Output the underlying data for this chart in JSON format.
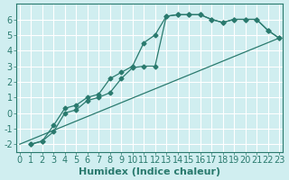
{
  "xlabel": "Humidex (Indice chaleur)",
  "ylabel": "",
  "bg_color": "#d0eef0",
  "line_color": "#2a7a6e",
  "grid_color": "#ffffff",
  "xlim": [
    0,
    23
  ],
  "ylim": [
    -2.5,
    7
  ],
  "xticks": [
    0,
    1,
    2,
    3,
    4,
    5,
    6,
    7,
    8,
    9,
    10,
    11,
    12,
    13,
    14,
    15,
    16,
    17,
    18,
    19,
    20,
    21,
    22,
    23
  ],
  "yticks": [
    -2,
    -1,
    0,
    1,
    2,
    3,
    4,
    5,
    6
  ],
  "line1_x": [
    1,
    2,
    3,
    4,
    5,
    6,
    7,
    8,
    9,
    10,
    11,
    12,
    13,
    14,
    15,
    16,
    17,
    18,
    19,
    20,
    21,
    22,
    23
  ],
  "line1_y": [
    -2.0,
    -1.8,
    -0.8,
    0.3,
    0.5,
    1.0,
    1.2,
    2.2,
    2.6,
    3.0,
    4.5,
    5.0,
    6.2,
    6.3,
    6.3,
    6.3,
    6.0,
    5.8,
    6.0,
    6.0,
    6.0,
    5.3,
    4.8
  ],
  "line2_x": [
    1,
    2,
    3,
    4,
    5,
    6,
    7,
    8,
    9,
    10,
    11,
    12,
    13,
    14,
    15,
    16,
    17,
    18,
    19,
    20,
    21,
    22,
    23
  ],
  "line2_y": [
    -2.0,
    -1.8,
    -1.2,
    0.0,
    0.2,
    0.8,
    1.0,
    1.3,
    2.2,
    2.9,
    3.0,
    3.0,
    6.2,
    6.3,
    6.3,
    6.3,
    6.0,
    5.8,
    6.0,
    6.0,
    6.0,
    5.3,
    4.8
  ],
  "line3_x": [
    0,
    23
  ],
  "line3_y": [
    -2.0,
    4.8
  ],
  "font_size_label": 8,
  "font_size_tick": 7
}
